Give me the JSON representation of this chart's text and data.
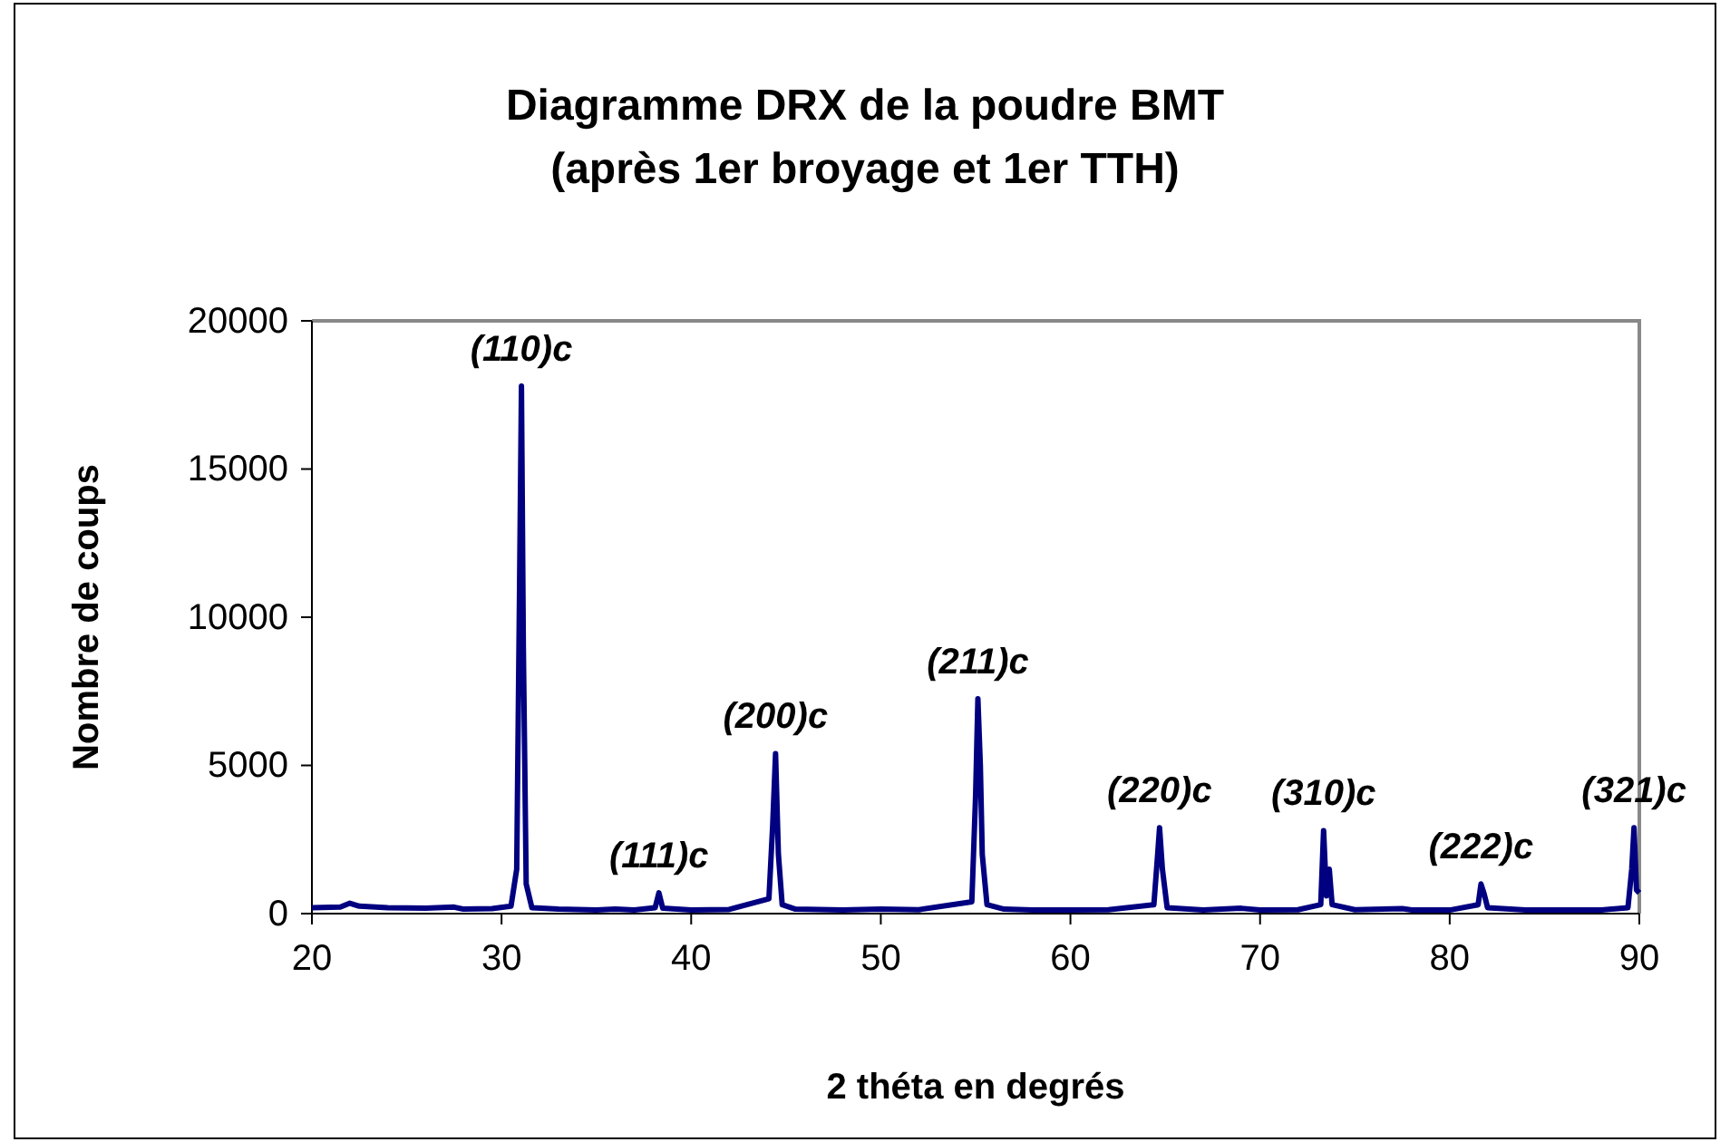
{
  "chart_data": {
    "type": "line",
    "title": "Diagramme DRX de la poudre BMT\n(après 1er broyage et 1er TTH)",
    "xlabel": "2 théta en degrés",
    "ylabel": "Nombre de coups",
    "xlim": [
      20,
      90
    ],
    "xticks": [
      20,
      30,
      40,
      50,
      60,
      70,
      80,
      90
    ],
    "ylim": [
      0,
      20000
    ],
    "yticks": [
      0,
      5000,
      10000,
      15000,
      20000
    ],
    "grid": false,
    "marker": "none",
    "line_style": "solid",
    "series": [
      {
        "color": "#000080",
        "x": [
          20,
          21.5,
          22,
          22.5,
          24,
          26,
          27.5,
          28,
          29.5,
          30.5,
          30.8,
          30.95,
          31.05,
          31.15,
          31.3,
          31.6,
          33,
          35,
          36,
          37,
          38.1,
          38.3,
          38.5,
          40,
          42,
          44.1,
          44.3,
          44.45,
          44.6,
          44.8,
          45.5,
          48,
          50,
          52,
          54.8,
          55.0,
          55.12,
          55.25,
          55.35,
          55.6,
          56.5,
          58,
          60,
          62,
          64.4,
          64.6,
          64.7,
          64.85,
          65.1,
          67,
          69,
          70,
          72,
          73.2,
          73.35,
          73.5,
          73.65,
          73.8,
          75,
          77.5,
          78,
          80,
          81.5,
          81.65,
          81.8,
          82,
          84,
          86,
          88,
          89.4,
          89.6,
          89.72,
          89.85,
          90
        ],
        "values": [
          200,
          220,
          350,
          250,
          200,
          180,
          220,
          150,
          170,
          250,
          1500,
          11000,
          17800,
          9000,
          1000,
          200,
          150,
          120,
          150,
          120,
          200,
          700,
          180,
          120,
          140,
          500,
          3000,
          5400,
          2000,
          300,
          150,
          120,
          150,
          130,
          400,
          4000,
          7250,
          5000,
          2000,
          300,
          150,
          120,
          120,
          130,
          300,
          2000,
          2900,
          1500,
          200,
          120,
          180,
          120,
          130,
          300,
          2800,
          600,
          1500,
          300,
          130,
          170,
          120,
          120,
          300,
          1000,
          700,
          200,
          120,
          120,
          120,
          200,
          1500,
          2900,
          800,
          700
        ]
      }
    ],
    "annotations": [
      {
        "text": "(110)c",
        "x": 31.05,
        "y": 17800
      },
      {
        "text": "(111)c",
        "x": 38.3,
        "y": 700
      },
      {
        "text": "(200)c",
        "x": 44.45,
        "y": 5400
      },
      {
        "text": "(211)c",
        "x": 55.12,
        "y": 7250
      },
      {
        "text": "(220)c",
        "x": 64.7,
        "y": 2900
      },
      {
        "text": "(310)c",
        "x": 73.35,
        "y": 2800
      },
      {
        "text": "(222)c",
        "x": 81.65,
        "y": 1000
      },
      {
        "text": "(321)c",
        "x": 89.72,
        "y": 2900
      }
    ]
  }
}
